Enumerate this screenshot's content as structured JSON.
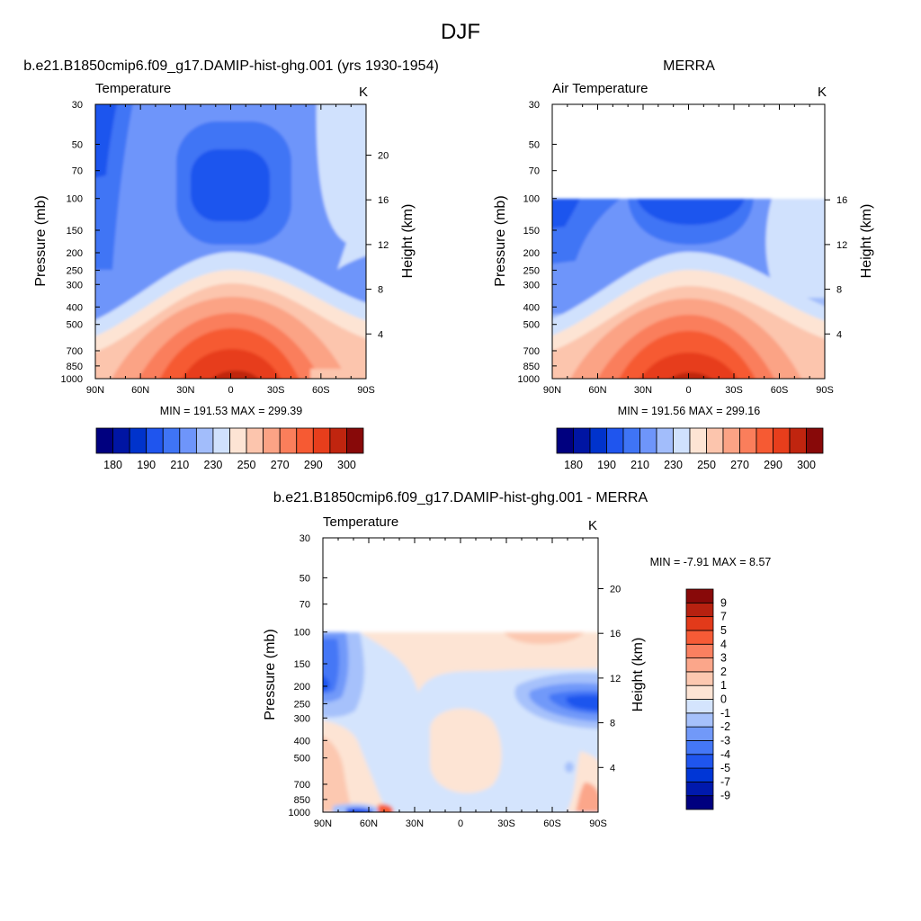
{
  "figure": {
    "title": "DJF"
  },
  "colors": {
    "temperature_levels": [
      "#00007f",
      "#0015a3",
      "#0033cc",
      "#1f55ee",
      "#3f74f5",
      "#6e95fa",
      "#a2bdfb",
      "#d0e1fd",
      "#fde4d4",
      "#fcc5ad",
      "#fba385",
      "#fa7e5b",
      "#f65a33",
      "#e73e1c",
      "#c0250f",
      "#880909"
    ],
    "difference_levels": [
      "#00007f",
      "#0019ad",
      "#0036d6",
      "#1f55ee",
      "#4477f6",
      "#7199f9",
      "#a6c1fb",
      "#d4e4fd",
      "#fde4d4",
      "#fcc8b0",
      "#fba68a",
      "#fa8060",
      "#f65b36",
      "#e23a1a",
      "#b72110",
      "#880909"
    ]
  },
  "chart_data": [
    {
      "type": "heatmap",
      "panel_title": "b.e21.B1850cmip6.f09_g17.DAMIP-hist-ghg.001 (yrs 1930-1954)",
      "variable_label": "Temperature",
      "units_label": "K",
      "ylabel": "Pressure (mb)",
      "y2label": "Height (km)",
      "x_ticks": [
        "90N",
        "60N",
        "30N",
        "0",
        "30S",
        "60S",
        "90S"
      ],
      "pressure_ticks": [
        30,
        50,
        70,
        100,
        150,
        200,
        250,
        300,
        400,
        500,
        700,
        850,
        1000
      ],
      "height_ticks": [
        4,
        8,
        12,
        16,
        20
      ],
      "ylim": [
        1000,
        30
      ],
      "data_top_pressure": 30,
      "stats": "MIN = 191.53  MAX = 299.39",
      "min": 191.53,
      "max": 299.39,
      "colorbar_labels": [
        "180",
        "190",
        "210",
        "230",
        "250",
        "270",
        "290",
        "300"
      ],
      "colorbar_orientation": "horizontal"
    },
    {
      "type": "heatmap",
      "panel_title": "MERRA",
      "variable_label": "Air Temperature",
      "units_label": "K",
      "ylabel": "Pressure (mb)",
      "y2label": "Height (km)",
      "x_ticks": [
        "90N",
        "60N",
        "30N",
        "0",
        "30S",
        "60S",
        "90S"
      ],
      "pressure_ticks": [
        30,
        50,
        70,
        100,
        150,
        200,
        250,
        300,
        400,
        500,
        700,
        850,
        1000
      ],
      "height_ticks": [
        4,
        8,
        12,
        16
      ],
      "ylim": [
        1000,
        30
      ],
      "data_top_pressure": 100,
      "stats": "MIN = 191.56  MAX = 299.16",
      "min": 191.56,
      "max": 299.16,
      "colorbar_labels": [
        "180",
        "190",
        "210",
        "230",
        "250",
        "270",
        "290",
        "300"
      ],
      "colorbar_orientation": "horizontal"
    },
    {
      "type": "heatmap",
      "panel_title": "b.e21.B1850cmip6.f09_g17.DAMIP-hist-ghg.001 - MERRA",
      "variable_label": "Temperature",
      "units_label": "K",
      "ylabel": "Pressure (mb)",
      "y2label": "Height (km)",
      "x_ticks": [
        "90N",
        "60N",
        "30N",
        "0",
        "30S",
        "60S",
        "90S"
      ],
      "pressure_ticks": [
        30,
        50,
        70,
        100,
        150,
        200,
        250,
        300,
        400,
        500,
        700,
        850,
        1000
      ],
      "height_ticks": [
        4,
        8,
        12,
        16,
        20
      ],
      "ylim": [
        1000,
        30
      ],
      "data_top_pressure": 100,
      "stats": "MIN =  -7.91  MAX =   8.57",
      "min": -7.91,
      "max": 8.57,
      "colorbar_labels": [
        "9",
        "7",
        "5",
        "4",
        "3",
        "2",
        "1",
        "0",
        "-1",
        "-2",
        "-3",
        "-4",
        "-5",
        "-7",
        "-9"
      ],
      "colorbar_orientation": "vertical"
    }
  ]
}
